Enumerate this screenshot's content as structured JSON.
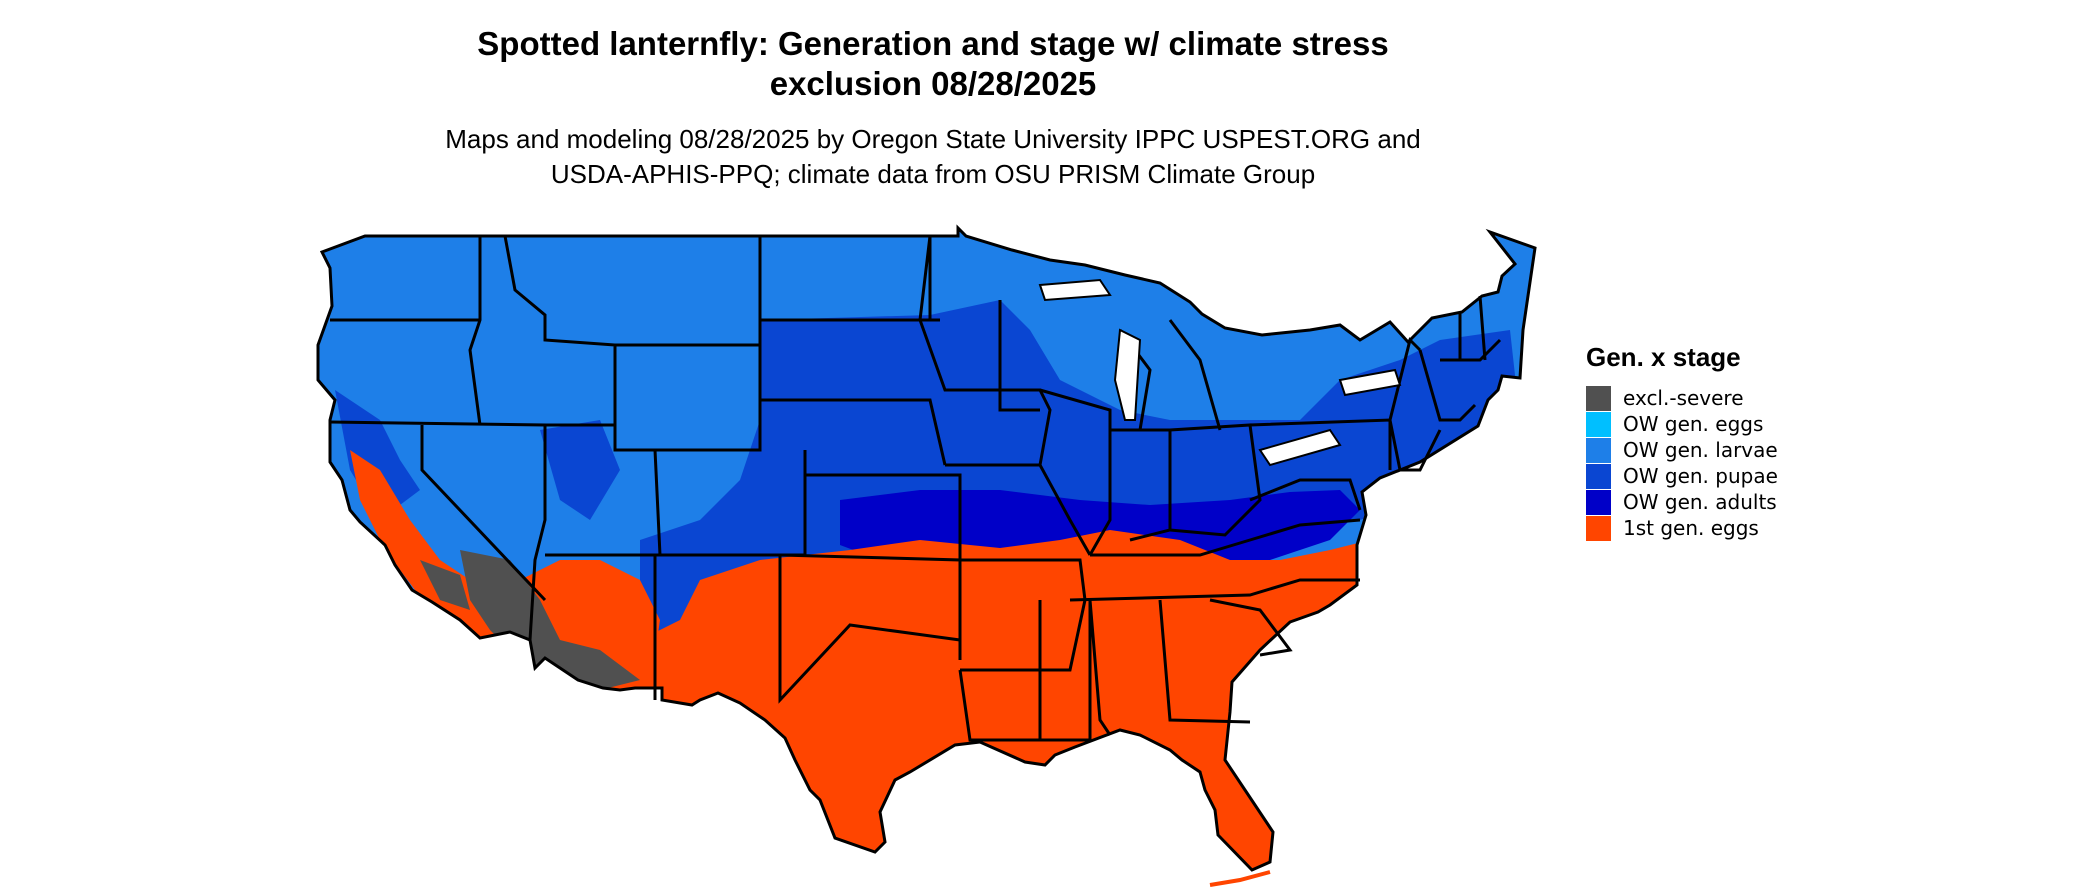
{
  "title_line1": "Spotted lanternfly: Generation and stage w/ climate stress",
  "title_line2": "exclusion 08/28/2025",
  "subtitle_line1": "Maps and modeling 08/28/2025 by Oregon State University IPPC USPEST.ORG and",
  "subtitle_line2": "USDA-APHIS-PPQ; climate data from OSU PRISM Climate Group",
  "legend": {
    "title": "Gen. x stage",
    "items": [
      {
        "label": "excl.-severe",
        "color": "#505050"
      },
      {
        "label": "OW gen. eggs",
        "color": "#00bfff"
      },
      {
        "label": "OW gen. larvae",
        "color": "#1e7fe8"
      },
      {
        "label": "OW gen. pupae",
        "color": "#0a46d2"
      },
      {
        "label": "OW gen. adults",
        "color": "#0000c8"
      },
      {
        "label": "1st gen. eggs",
        "color": "#ff4500"
      }
    ]
  }
}
